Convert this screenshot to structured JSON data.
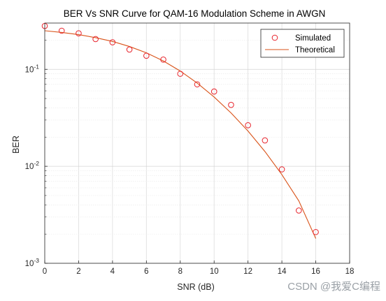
{
  "chart_data": {
    "type": "scatter",
    "title": "BER Vs SNR Curve for QAM-16 Modulation Scheme in AWGN",
    "xlabel": "SNR (dB)",
    "ylabel": "BER",
    "xlim": [
      0,
      18
    ],
    "ylim": [
      0.001,
      0.3
    ],
    "yscale": "log",
    "grid": true,
    "legend_position": "top-right",
    "x_ticks": [
      "0",
      "2",
      "4",
      "6",
      "8",
      "10",
      "12",
      "14",
      "16",
      "18"
    ],
    "y_ticks": [
      {
        "base": "10",
        "exp": "-1",
        "value": 0.1
      },
      {
        "base": "10",
        "exp": "-2",
        "value": 0.01
      },
      {
        "base": "10",
        "exp": "-3",
        "value": 0.001
      }
    ],
    "series": [
      {
        "name": "Simulated",
        "style": "markers",
        "color": "#e8242d",
        "x": [
          0,
          1,
          2,
          3,
          4,
          5,
          6,
          7,
          8,
          9,
          10,
          11,
          12,
          13,
          14,
          15,
          16
        ],
        "y": [
          0.28,
          0.25,
          0.235,
          0.205,
          0.19,
          0.16,
          0.138,
          0.126,
          0.09,
          0.07,
          0.059,
          0.043,
          0.0265,
          0.0185,
          0.0093,
          0.0035,
          0.0021
        ]
      },
      {
        "name": "Theoretical",
        "style": "line",
        "color": "#d95319",
        "x": [
          0,
          1,
          2,
          3,
          4,
          5,
          6,
          7,
          8,
          9,
          10,
          11,
          12,
          13,
          14,
          15,
          16
        ],
        "y": [
          0.25,
          0.24,
          0.228,
          0.212,
          0.194,
          0.172,
          0.148,
          0.122,
          0.096,
          0.0722,
          0.0518,
          0.0355,
          0.0231,
          0.0142,
          0.0082,
          0.0044,
          0.0018
        ]
      }
    ]
  },
  "watermark": "CSDN @我爱C编程"
}
